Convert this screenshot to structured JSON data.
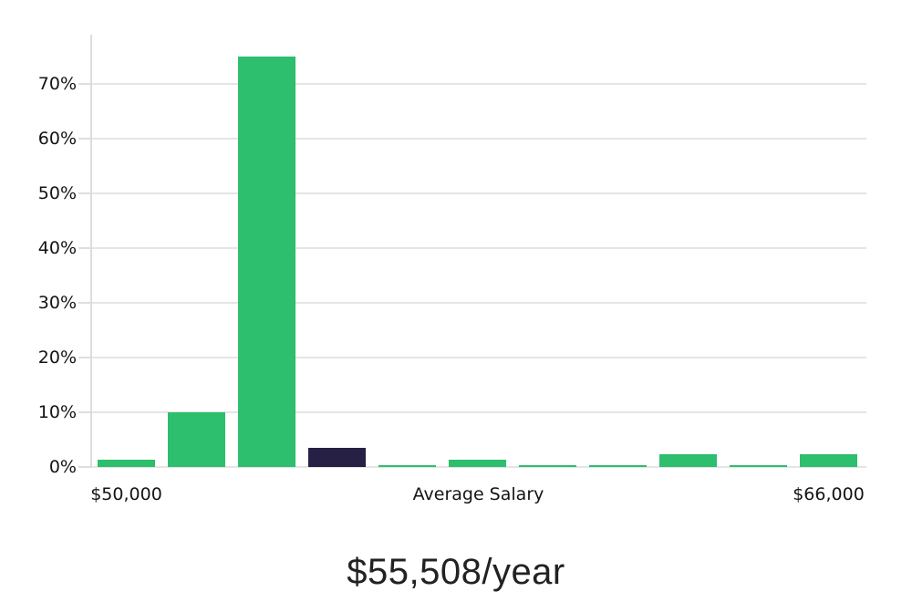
{
  "chart_data": {
    "type": "bar",
    "title": "$55,508/year",
    "values": [
      1.3,
      10,
      75,
      3.5,
      0.3,
      1.3,
      0.3,
      0.3,
      2.3,
      0.3,
      2.3
    ],
    "value_unit": "%",
    "highlight_index": 3,
    "y_axis": {
      "tick_labels": [
        "0%",
        "10%",
        "20%",
        "30%",
        "40%",
        "50%",
        "60%",
        "70%"
      ],
      "min": 0,
      "max": 79,
      "grid": true
    },
    "x_axis": {
      "tick_labels": [
        "$50,000",
        "Average Salary",
        "$66,000"
      ]
    },
    "legend": "none",
    "colors": {
      "bar": "#2DBE6E",
      "highlight_bar": "#262144",
      "grid": "#e5e5e5",
      "axis_line": "#dcdcdc",
      "tick_text": "#141414",
      "title_text": "#222222",
      "background": "#ffffff"
    }
  }
}
